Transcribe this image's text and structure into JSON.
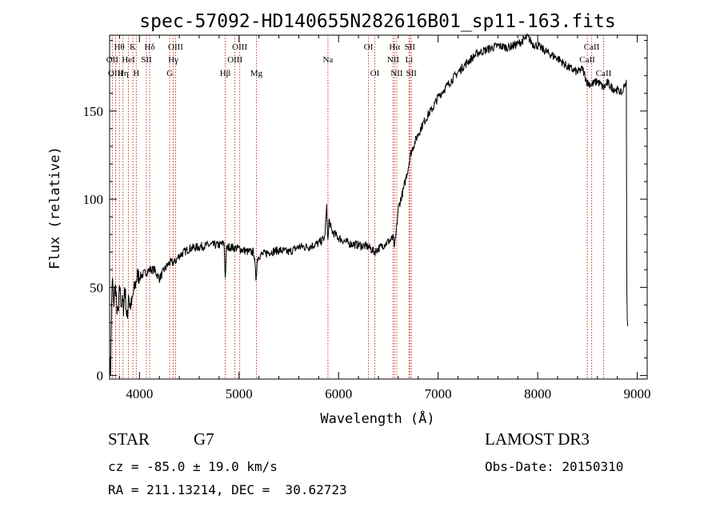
{
  "chart_data": {
    "type": "line",
    "title": "spec-57092-HD140655N282616B01_sp11-163.fits",
    "xlabel": "Wavelength (Å)",
    "ylabel": "Flux (relative)",
    "xlim": [
      3700,
      9100
    ],
    "ylim": [
      -2,
      193
    ],
    "xticks": [
      4000,
      5000,
      6000,
      7000,
      8000,
      9000
    ],
    "yticks": [
      0,
      50,
      100,
      150
    ],
    "grid": false,
    "series": [
      {
        "name": "flux",
        "x": [
          3700,
          3710,
          3720,
          3730,
          3740,
          3750,
          3760,
          3770,
          3780,
          3790,
          3800,
          3810,
          3820,
          3830,
          3840,
          3850,
          3860,
          3870,
          3880,
          3890,
          3900,
          3920,
          3940,
          3960,
          3980,
          4000,
          4050,
          4100,
          4150,
          4200,
          4250,
          4300,
          4350,
          4400,
          4450,
          4500,
          4600,
          4700,
          4800,
          4850,
          4862,
          4875,
          4900,
          5000,
          5100,
          5150,
          5170,
          5185,
          5200,
          5300,
          5400,
          5500,
          5600,
          5700,
          5800,
          5860,
          5880,
          5893,
          5905,
          5930,
          6000,
          6100,
          6200,
          6300,
          6360,
          6400,
          6450,
          6500,
          6550,
          6563,
          6580,
          6600,
          6650,
          6700,
          6720,
          6750,
          6800,
          6850,
          6900,
          6950,
          7000,
          7100,
          7200,
          7300,
          7400,
          7500,
          7600,
          7700,
          7800,
          7850,
          7900,
          7950,
          8000,
          8100,
          8200,
          8300,
          8400,
          8450,
          8498,
          8542,
          8600,
          8662,
          8700,
          8750,
          8800,
          8850,
          8870,
          8890,
          8895,
          8900,
          8905
        ],
        "values": [
          8,
          3,
          42,
          55,
          38,
          48,
          50,
          40,
          35,
          36,
          52,
          44,
          40,
          42,
          38,
          50,
          45,
          35,
          32,
          48,
          40,
          40,
          47,
          52,
          57,
          56,
          58,
          60,
          60,
          55,
          60,
          64,
          64,
          68,
          70,
          72,
          73,
          74,
          74,
          75,
          55,
          72,
          73,
          72,
          70,
          70,
          55,
          66,
          68,
          70,
          71,
          70,
          73,
          73,
          75,
          78,
          95,
          76,
          88,
          82,
          78,
          75,
          74,
          73,
          70,
          72,
          74,
          76,
          78,
          72,
          82,
          95,
          105,
          118,
          125,
          130,
          137,
          143,
          148,
          152,
          158,
          165,
          172,
          178,
          183,
          185,
          187,
          186,
          188,
          190,
          192,
          188,
          187,
          183,
          180,
          175,
          172,
          174,
          166,
          165,
          167,
          163,
          166,
          163,
          162,
          160,
          165,
          166,
          50,
          30,
          28
        ]
      }
    ],
    "line_markers": [
      {
        "label": "Hθ",
        "x": 3798,
        "row": 1
      },
      {
        "label": "OII",
        "x": 3727,
        "row": 2
      },
      {
        "label": "OIII",
        "x": 3760,
        "row": 3
      },
      {
        "label": "K",
        "x": 3934,
        "row": 1
      },
      {
        "label": "HeI",
        "x": 3889,
        "row": 2
      },
      {
        "label": "Hη",
        "x": 3835,
        "row": 3
      },
      {
        "label": "Hδ",
        "x": 4102,
        "row": 1
      },
      {
        "label": "SII",
        "x": 4070,
        "row": 2
      },
      {
        "label": "H",
        "x": 3968,
        "row": 3
      },
      {
        "label": "OIII",
        "x": 4363,
        "row": 1
      },
      {
        "label": "Hγ",
        "x": 4340,
        "row": 2
      },
      {
        "label": "G",
        "x": 4304,
        "row": 3
      },
      {
        "label": "OIII",
        "x": 5007,
        "row": 1
      },
      {
        "label": "OIII",
        "x": 4959,
        "row": 2
      },
      {
        "label": "Hβ",
        "x": 4861,
        "row": 3
      },
      {
        "label": "Mg",
        "x": 5175,
        "row": 3
      },
      {
        "label": "Na",
        "x": 5893,
        "row": 2
      },
      {
        "label": "OI",
        "x": 6300,
        "row": 1
      },
      {
        "label": "OI",
        "x": 6364,
        "row": 3
      },
      {
        "label": "Hα",
        "x": 6563,
        "row": 1
      },
      {
        "label": "NII",
        "x": 6548,
        "row": 2
      },
      {
        "label": "NII",
        "x": 6584,
        "row": 3
      },
      {
        "label": "SII",
        "x": 6716,
        "row": 1
      },
      {
        "label": "Li",
        "x": 6708,
        "row": 2
      },
      {
        "label": "SII",
        "x": 6731,
        "row": 3
      },
      {
        "label": "CaII",
        "x": 8542,
        "row": 1
      },
      {
        "label": "CaII",
        "x": 8498,
        "row": 2
      },
      {
        "label": "CaII",
        "x": 8662,
        "row": 3
      }
    ]
  },
  "info": {
    "object_class": "STAR",
    "subclass": "G7",
    "survey": "LAMOST DR3",
    "cz": "cz = -85.0 ± 19.0 km/s",
    "obs_date": "Obs-Date: 20150310",
    "coords": "RA = 211.13214, DEC =  30.62723"
  },
  "colors": {
    "line": "#000000",
    "marker": "#c0392b",
    "background": "#ffffff"
  }
}
